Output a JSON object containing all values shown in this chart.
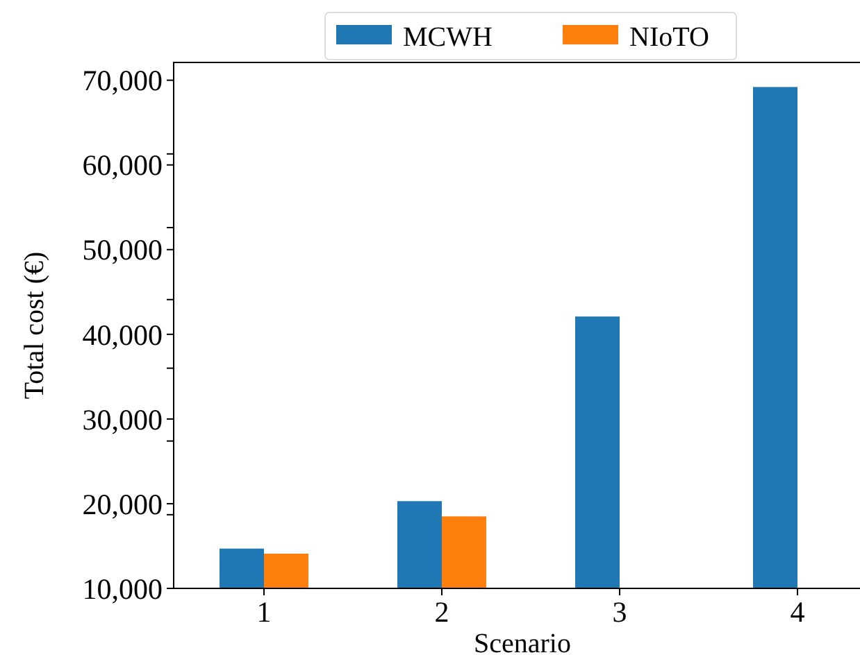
{
  "chart_data": {
    "type": "bar",
    "xlabel": "Scenario",
    "ylabel": "Total cost (€)",
    "categories": [
      "1",
      "2",
      "3",
      "4"
    ],
    "series": [
      {
        "name": "MCWH",
        "color": "#1f77b4",
        "values": [
          14700,
          20300,
          42100,
          69200
        ]
      },
      {
        "name": "NIoTO",
        "color": "#ff7f0e",
        "values": [
          14100,
          18500,
          null,
          null
        ]
      }
    ],
    "ylim": [
      10000,
      72100
    ],
    "yticks": [
      {
        "value": 10000,
        "label": "10,000"
      },
      {
        "value": 18700,
        "label": null
      },
      {
        "value": 20000,
        "label": "20,000"
      },
      {
        "value": 27400,
        "label": null
      },
      {
        "value": 30000,
        "label": "30,000"
      },
      {
        "value": 36000,
        "label": null
      },
      {
        "value": 40000,
        "label": "40,000"
      },
      {
        "value": 44100,
        "label": null
      },
      {
        "value": 50000,
        "label": "50,000"
      },
      {
        "value": 52600,
        "label": null
      },
      {
        "value": 60000,
        "label": "60,000"
      },
      {
        "value": 61300,
        "label": null
      },
      {
        "value": 70000,
        "label": "70,000"
      }
    ],
    "grid": false,
    "legend": "top"
  }
}
